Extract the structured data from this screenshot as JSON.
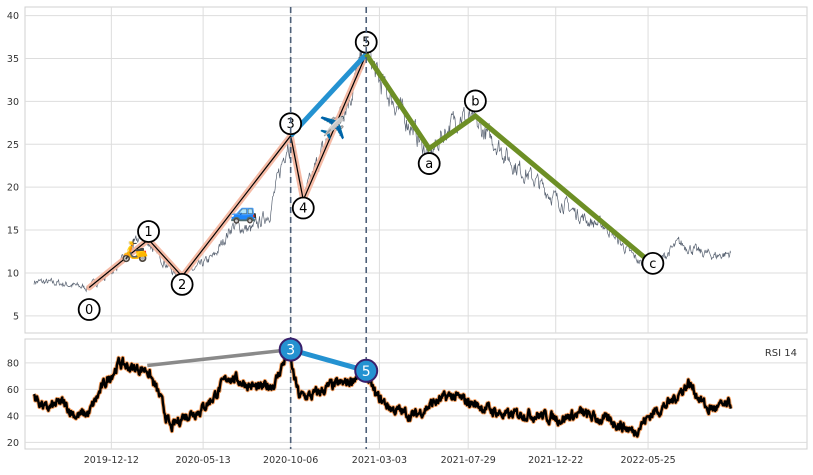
{
  "chart_data": [
    {
      "type": "line",
      "panel": "price",
      "x_type": "date",
      "xlim": [
        "2019-07-21",
        "2023-02-14"
      ],
      "ylim": [
        3,
        41
      ],
      "y_ticks": [
        5,
        10,
        15,
        20,
        25,
        30,
        35,
        40
      ],
      "grid": true,
      "price_series": {
        "name": "",
        "color": "#5a6473",
        "anchors": [
          [
            "2019-08-05",
            9.0
          ],
          [
            "2019-09-15",
            8.8
          ],
          [
            "2019-11-01",
            8.3
          ],
          [
            "2019-12-01",
            9.5
          ],
          [
            "2020-01-01",
            11.5
          ],
          [
            "2020-02-01",
            14.5
          ],
          [
            "2020-03-01",
            12.0
          ],
          [
            "2020-04-01",
            9.5
          ],
          [
            "2020-05-01",
            10.5
          ],
          [
            "2020-06-01",
            12.0
          ],
          [
            "2020-07-01",
            15.5
          ],
          [
            "2020-08-01",
            15.0
          ],
          [
            "2020-09-01",
            17.0
          ],
          [
            "2020-10-01",
            25.5
          ],
          [
            "2020-10-15",
            23.5
          ],
          [
            "2020-10-27",
            18.5
          ],
          [
            "2020-11-15",
            22.0
          ],
          [
            "2020-12-15",
            27.0
          ],
          [
            "2021-01-15",
            31.0
          ],
          [
            "2021-02-10",
            36.5
          ],
          [
            "2021-03-01",
            32.5
          ],
          [
            "2021-04-01",
            29.5
          ],
          [
            "2021-05-01",
            26.5
          ],
          [
            "2021-05-25",
            23.5
          ],
          [
            "2021-06-15",
            26.0
          ],
          [
            "2021-07-15",
            28.5
          ],
          [
            "2021-08-15",
            27.0
          ],
          [
            "2021-09-15",
            25.0
          ],
          [
            "2021-10-15",
            22.5
          ],
          [
            "2021-11-15",
            21.0
          ],
          [
            "2021-12-15",
            19.0
          ],
          [
            "2022-01-15",
            17.5
          ],
          [
            "2022-02-15",
            16.0
          ],
          [
            "2022-03-15",
            15.5
          ],
          [
            "2022-04-15",
            13.0
          ],
          [
            "2022-05-15",
            11.0
          ],
          [
            "2022-06-15",
            11.5
          ],
          [
            "2022-07-15",
            13.5
          ],
          [
            "2022-08-15",
            12.5
          ],
          [
            "2022-09-15",
            12.0
          ],
          [
            "2022-10-10",
            12.3
          ]
        ]
      },
      "impulse_wave": {
        "color": "#f4b49c",
        "points": [
          {
            "date": "2019-11-05",
            "value": 8.3,
            "label": "0"
          },
          {
            "date": "2020-02-12",
            "value": 13.9,
            "label": "1"
          },
          {
            "date": "2020-04-08",
            "value": 9.6,
            "label": "2"
          },
          {
            "date": "2020-10-06",
            "value": 26.0,
            "label": "3"
          },
          {
            "date": "2020-10-27",
            "value": 18.5,
            "label": "4"
          },
          {
            "date": "2021-02-09",
            "value": 35.5,
            "label": "5"
          }
        ]
      },
      "wave_3_5_line": {
        "color": "#2492d1",
        "points": [
          [
            "2020-10-06",
            26.0
          ],
          [
            "2021-02-09",
            35.5
          ]
        ]
      },
      "corrective_wave": {
        "color": "#6d8f25",
        "points": [
          {
            "date": "2021-02-09",
            "value": 35.5,
            "label": ""
          },
          {
            "date": "2021-05-25",
            "value": 24.5,
            "label": "a"
          },
          {
            "date": "2021-08-10",
            "value": 28.3,
            "label": "b"
          },
          {
            "date": "2022-06-02",
            "value": 11.0,
            "label": "c"
          }
        ]
      },
      "vertical_lines": [
        "2020-10-06",
        "2021-02-09"
      ],
      "icons": [
        {
          "name": "scooter-icon",
          "emoji": "🛵",
          "date": "2020-01-20",
          "value": 12.5
        },
        {
          "name": "car-icon",
          "emoji": "🚙",
          "date": "2020-07-20",
          "value": 17.0
        },
        {
          "name": "airplane-icon",
          "emoji": "✈️",
          "date": "2020-12-15",
          "value": 26.8
        }
      ]
    },
    {
      "type": "line",
      "panel": "rsi",
      "x_type": "date",
      "xlim": [
        "2019-07-21",
        "2023-02-14"
      ],
      "ylim": [
        15,
        98
      ],
      "y_ticks": [
        20,
        40,
        60,
        80
      ],
      "legend": "RSI 14",
      "legend_position": "top-right",
      "x_ticks": [
        "2019-12-12",
        "2020-05-13",
        "2020-10-06",
        "2021-03-03",
        "2021-07-29",
        "2021-12-22",
        "2022-05-25"
      ],
      "rsi_series": {
        "name": "RSI 14",
        "color": "#000000",
        "outline": "#f5a060",
        "anchors": [
          [
            "2019-08-05",
            55
          ],
          [
            "2019-08-25",
            45
          ],
          [
            "2019-09-20",
            50
          ],
          [
            "2019-10-15",
            40
          ],
          [
            "2019-11-05",
            42
          ],
          [
            "2019-11-25",
            60
          ],
          [
            "2019-12-10",
            70
          ],
          [
            "2019-12-25",
            80
          ],
          [
            "2020-01-15",
            76
          ],
          [
            "2020-02-10",
            75
          ],
          [
            "2020-03-01",
            55
          ],
          [
            "2020-03-20",
            30
          ],
          [
            "2020-04-10",
            40
          ],
          [
            "2020-05-10",
            45
          ],
          [
            "2020-06-01",
            55
          ],
          [
            "2020-06-25",
            70
          ],
          [
            "2020-07-20",
            65
          ],
          [
            "2020-08-15",
            60
          ],
          [
            "2020-09-10",
            65
          ],
          [
            "2020-10-01",
            88
          ],
          [
            "2020-10-20",
            55
          ],
          [
            "2020-11-10",
            55
          ],
          [
            "2020-12-10",
            62
          ],
          [
            "2021-01-10",
            65
          ],
          [
            "2021-02-05",
            75
          ],
          [
            "2021-02-25",
            55
          ],
          [
            "2021-03-25",
            45
          ],
          [
            "2021-05-01",
            40
          ],
          [
            "2021-06-01",
            50
          ],
          [
            "2021-07-01",
            55
          ],
          [
            "2021-08-01",
            50
          ],
          [
            "2021-09-01",
            45
          ],
          [
            "2021-10-01",
            40
          ],
          [
            "2021-11-01",
            42
          ],
          [
            "2021-12-01",
            40
          ],
          [
            "2022-01-01",
            38
          ],
          [
            "2022-02-01",
            42
          ],
          [
            "2022-03-01",
            38
          ],
          [
            "2022-04-01",
            35
          ],
          [
            "2022-05-01",
            28
          ],
          [
            "2022-06-01",
            42
          ],
          [
            "2022-07-01",
            50
          ],
          [
            "2022-08-01",
            65
          ],
          [
            "2022-09-01",
            45
          ],
          [
            "2022-10-10",
            48
          ]
        ]
      },
      "divergence_gray": {
        "color": "#8a8a8a",
        "points": [
          [
            "2020-02-10",
            78
          ],
          [
            "2020-10-06",
            90
          ]
        ]
      },
      "divergence_blue": {
        "color": "#2492d1",
        "points": [
          [
            "2020-10-06",
            90
          ],
          [
            "2021-02-09",
            74
          ]
        ]
      },
      "markers": [
        {
          "date": "2020-10-06",
          "value": 90,
          "label": "3"
        },
        {
          "date": "2021-02-09",
          "value": 74,
          "label": "5"
        }
      ]
    }
  ]
}
